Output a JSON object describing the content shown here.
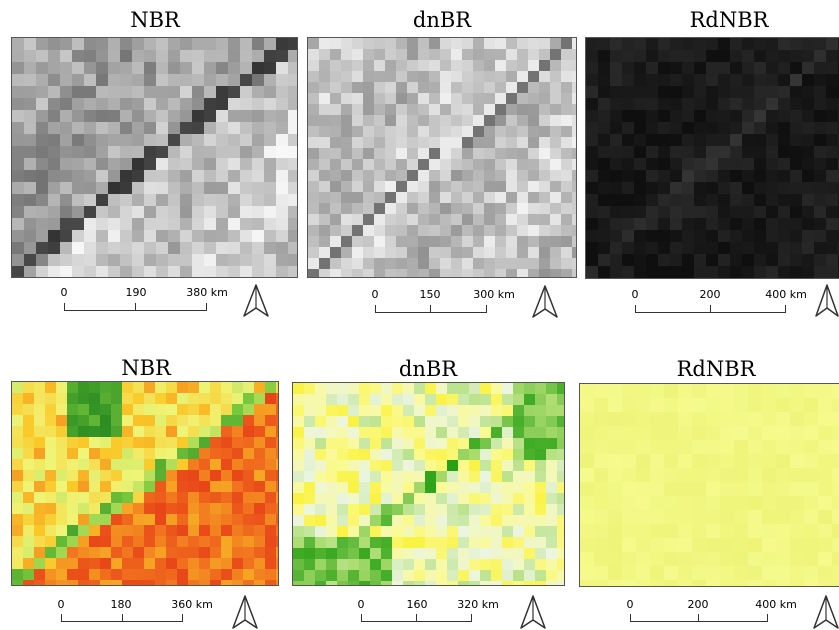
{
  "panels": [
    {
      "title": "NBR",
      "palette": "gray",
      "seed": 11,
      "cell": 12,
      "base": 0.62,
      "road": "dark",
      "scale": [
        "0",
        "190",
        "380 km"
      ]
    },
    {
      "title": "dnBR",
      "palette": "gray",
      "seed": 23,
      "cell": 11,
      "base": 0.72,
      "road": "mixed",
      "scale": [
        "0",
        "150",
        "300 km"
      ]
    },
    {
      "title": "RdNBR",
      "palette": "dark",
      "seed": 37,
      "cell": 12,
      "base": 0.16,
      "road": "darkfaint",
      "scale": [
        "0",
        "200",
        "400 km"
      ]
    },
    {
      "title": "NBR",
      "palette": "redgreen",
      "seed": 41,
      "cell": 11,
      "base": 0.35,
      "road": "light",
      "scale": [
        "0",
        "180",
        "360 km"
      ]
    },
    {
      "title": "dnBR",
      "palette": "yellowgreen",
      "seed": 53,
      "cell": 11,
      "base": 0.45,
      "road": "green",
      "scale": [
        "0",
        "160",
        "320 km"
      ]
    },
    {
      "title": "RdNBR",
      "palette": "flatyellow",
      "seed": 61,
      "cell": 14,
      "base": 0.5,
      "road": "none",
      "scale": [
        "0",
        "200",
        "400 km"
      ]
    }
  ],
  "north_arrow_icon": "north-arrow-icon"
}
